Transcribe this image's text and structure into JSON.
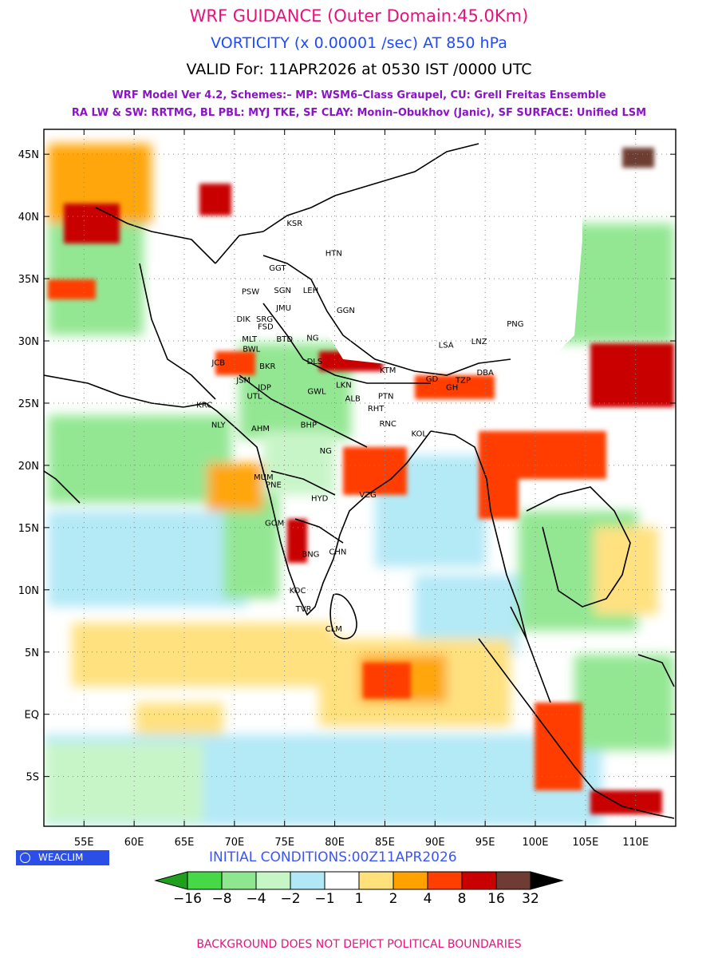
{
  "header": {
    "title": "WRF GUIDANCE (Outer Domain:45.0Km)",
    "field": "VORTICITY (x 0.00001 /sec) AT 850 hPa",
    "valid": "VALID For: 11APR2026 at 0530 IST /0000 UTC",
    "model_line1": "WRF Model Ver 4.2, Schemes:– MP: WSM6–Class Graupel, CU: Grell Freitas Ensemble",
    "model_line2": "RA LW & SW: RRTMG, BL PBL: MYJ TKE, SF CLAY: Monin–Obukhov (Janic), SF SURFACE: Unified LSM"
  },
  "map": {
    "lon_range": [
      51,
      114
    ],
    "lat_range": [
      -9,
      47
    ],
    "lon_ticks": [
      "55E",
      "60E",
      "65E",
      "70E",
      "75E",
      "80E",
      "85E",
      "90E",
      "95E",
      "100E",
      "105E",
      "110E"
    ],
    "lat_ticks": [
      "45N",
      "40N",
      "35N",
      "30N",
      "25N",
      "20N",
      "15N",
      "10N",
      "5N",
      "EQ",
      "5S"
    ],
    "lon_tick_values": [
      55,
      60,
      65,
      70,
      75,
      80,
      85,
      90,
      95,
      100,
      105,
      110
    ],
    "lat_tick_values": [
      45,
      40,
      35,
      30,
      25,
      20,
      15,
      10,
      5,
      0,
      -5
    ],
    "grid": true,
    "cities": [
      {
        "name": "KSR",
        "lon": 76.0,
        "lat": 39.5
      },
      {
        "name": "HTN",
        "lon": 79.9,
        "lat": 37.1
      },
      {
        "name": "GGT",
        "lon": 74.3,
        "lat": 35.9
      },
      {
        "name": "PSW",
        "lon": 71.6,
        "lat": 34.0
      },
      {
        "name": "SGN",
        "lon": 74.8,
        "lat": 34.1
      },
      {
        "name": "LEH",
        "lon": 77.6,
        "lat": 34.1
      },
      {
        "name": "JMU",
        "lon": 74.9,
        "lat": 32.7
      },
      {
        "name": "DIK",
        "lon": 70.9,
        "lat": 31.8
      },
      {
        "name": "SRG",
        "lon": 73.0,
        "lat": 31.8
      },
      {
        "name": "GGN",
        "lon": 81.1,
        "lat": 32.5
      },
      {
        "name": "FSD",
        "lon": 73.1,
        "lat": 31.2
      },
      {
        "name": "MLT",
        "lon": 71.5,
        "lat": 30.2
      },
      {
        "name": "BTD",
        "lon": 75.0,
        "lat": 30.2
      },
      {
        "name": "NG",
        "lon": 77.8,
        "lat": 30.3
      },
      {
        "name": "BWL",
        "lon": 71.7,
        "lat": 29.4
      },
      {
        "name": "LSA",
        "lon": 91.1,
        "lat": 29.7
      },
      {
        "name": "LNZ",
        "lon": 94.4,
        "lat": 30.0
      },
      {
        "name": "PNG",
        "lon": 98.0,
        "lat": 31.4
      },
      {
        "name": "JCB",
        "lon": 68.4,
        "lat": 28.3
      },
      {
        "name": "BKR",
        "lon": 73.3,
        "lat": 28.0
      },
      {
        "name": "DLS",
        "lon": 78.0,
        "lat": 28.4
      },
      {
        "name": "KTM",
        "lon": 85.3,
        "lat": 27.7
      },
      {
        "name": "JSM",
        "lon": 70.9,
        "lat": 26.9
      },
      {
        "name": "JDP",
        "lon": 73.0,
        "lat": 26.3
      },
      {
        "name": "LKN",
        "lon": 80.9,
        "lat": 26.5
      },
      {
        "name": "GD",
        "lon": 89.7,
        "lat": 27.0
      },
      {
        "name": "TZP",
        "lon": 92.8,
        "lat": 26.9
      },
      {
        "name": "DBA",
        "lon": 95.0,
        "lat": 27.5
      },
      {
        "name": "UTL",
        "lon": 72.0,
        "lat": 25.6
      },
      {
        "name": "GWL",
        "lon": 78.2,
        "lat": 26.0
      },
      {
        "name": "GH",
        "lon": 91.7,
        "lat": 26.3
      },
      {
        "name": "ALB",
        "lon": 81.8,
        "lat": 25.4
      },
      {
        "name": "PTN",
        "lon": 85.1,
        "lat": 25.6
      },
      {
        "name": "KRC",
        "lon": 67.0,
        "lat": 24.9
      },
      {
        "name": "RHT",
        "lon": 84.1,
        "lat": 24.6
      },
      {
        "name": "BHP",
        "lon": 77.4,
        "lat": 23.3
      },
      {
        "name": "NLY",
        "lon": 68.4,
        "lat": 23.3
      },
      {
        "name": "AHM",
        "lon": 72.6,
        "lat": 23.0
      },
      {
        "name": "RNC",
        "lon": 85.3,
        "lat": 23.4
      },
      {
        "name": "KOL",
        "lon": 88.4,
        "lat": 22.6
      },
      {
        "name": "NG",
        "lon": 79.1,
        "lat": 21.2
      },
      {
        "name": "MUM",
        "lon": 72.9,
        "lat": 19.1
      },
      {
        "name": "PNE",
        "lon": 73.9,
        "lat": 18.5
      },
      {
        "name": "HYD",
        "lon": 78.5,
        "lat": 17.4
      },
      {
        "name": "VZG",
        "lon": 83.3,
        "lat": 17.7
      },
      {
        "name": "GOM",
        "lon": 74.0,
        "lat": 15.4
      },
      {
        "name": "BNG",
        "lon": 77.6,
        "lat": 12.9
      },
      {
        "name": "CHN",
        "lon": 80.3,
        "lat": 13.1
      },
      {
        "name": "KOC",
        "lon": 76.3,
        "lat": 10.0
      },
      {
        "name": "TVR",
        "lon": 76.9,
        "lat": 8.5
      },
      {
        "name": "CLM",
        "lon": 79.9,
        "lat": 6.9
      }
    ]
  },
  "colorbar": {
    "levels": [
      "−16",
      "−8",
      "−4",
      "−2",
      "−1",
      "1",
      "2",
      "4",
      "8",
      "16",
      "32"
    ],
    "colors": [
      "#1ea01e",
      "#46d846",
      "#8ee68e",
      "#c6f5c6",
      "#b0e8f6",
      "#ffffff",
      "#ffe07a",
      "#ffa200",
      "#ff3e00",
      "#c80000",
      "#6e3c32",
      "#000000"
    ]
  },
  "logo": {
    "text": "WEACLIM"
  },
  "init": "INITIAL CONDITIONS:00Z11APR2026",
  "footer": "BACKGROUND DOES NOT DEPICT POLITICAL BOUNDARIES"
}
